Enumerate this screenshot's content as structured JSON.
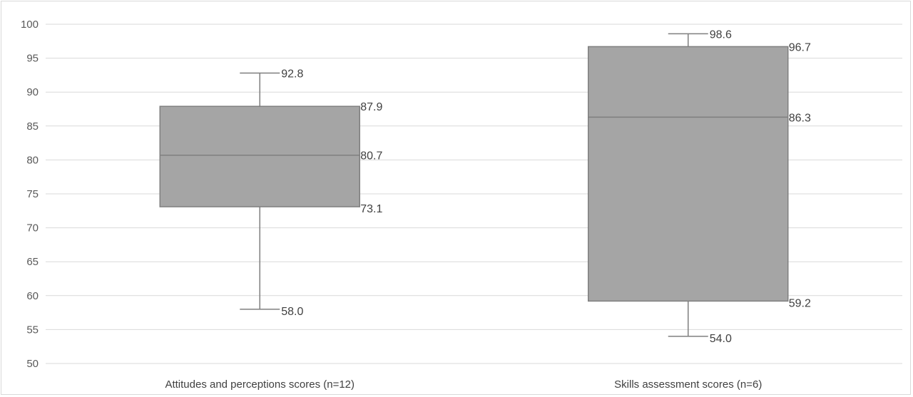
{
  "chart_data": {
    "type": "box",
    "title": "",
    "xlabel": "",
    "ylabel": "",
    "ylim": [
      50,
      100
    ],
    "yticks": [
      50,
      55,
      60,
      65,
      70,
      75,
      80,
      85,
      90,
      95,
      100
    ],
    "grid": true,
    "categories": [
      "Attitudes and perceptions scores (n=12)",
      "Skills assessment scores (n=6)"
    ],
    "boxes": [
      {
        "min": 58.0,
        "q1": 73.1,
        "median": 80.7,
        "q3": 87.9,
        "max": 92.8,
        "labels": {
          "min": "58.0",
          "q1": "73.1",
          "median": "80.7",
          "q3": "87.9",
          "max": "92.8"
        }
      },
      {
        "min": 54.0,
        "q1": 59.2,
        "median": 86.3,
        "q3": 96.7,
        "max": 98.6,
        "labels": {
          "min": "54.0",
          "q1": "59.2",
          "median": "86.3",
          "q3": "96.7",
          "max": "98.6"
        }
      }
    ],
    "colors": {
      "box_fill": "#a5a5a5",
      "box_stroke": "#7f7f7f",
      "whisker": "#7f7f7f",
      "grid": "#d9d9d9"
    }
  }
}
